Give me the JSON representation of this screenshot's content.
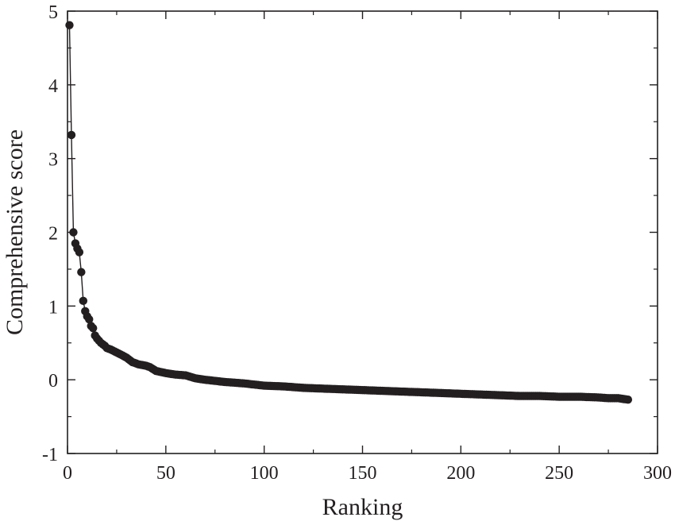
{
  "chart_data": {
    "type": "scatter",
    "title": "",
    "xlabel": "Ranking",
    "ylabel": "Comprehensive score",
    "xlim": [
      0,
      300
    ],
    "ylim": [
      -1,
      5
    ],
    "x_ticks": [
      "0",
      "50",
      "100",
      "150",
      "200",
      "250",
      "300"
    ],
    "y_ticks": [
      "-1",
      "0",
      "1",
      "2",
      "3",
      "4",
      "5"
    ],
    "grid": false,
    "legend": "none",
    "marker_color": "#231f20",
    "line_connected": true,
    "points_total": 285,
    "points": [
      [
        1,
        4.81
      ],
      [
        2,
        3.32
      ],
      [
        3,
        2.0
      ],
      [
        4,
        1.85
      ],
      [
        5,
        1.78
      ],
      [
        6,
        1.73
      ],
      [
        7,
        1.46
      ],
      [
        8,
        1.07
      ],
      [
        9,
        0.93
      ],
      [
        10,
        0.86
      ],
      [
        11,
        0.82
      ],
      [
        12,
        0.73
      ],
      [
        13,
        0.7
      ],
      [
        14,
        0.6
      ],
      [
        15,
        0.56
      ],
      [
        16,
        0.53
      ],
      [
        17,
        0.5
      ],
      [
        18,
        0.48
      ],
      [
        19,
        0.46
      ],
      [
        20,
        0.43
      ],
      [
        22,
        0.41
      ],
      [
        25,
        0.37
      ],
      [
        28,
        0.33
      ],
      [
        30,
        0.3
      ],
      [
        33,
        0.24
      ],
      [
        36,
        0.21
      ],
      [
        40,
        0.19
      ],
      [
        42,
        0.17
      ],
      [
        45,
        0.12
      ],
      [
        50,
        0.09
      ],
      [
        55,
        0.07
      ],
      [
        60,
        0.06
      ],
      [
        65,
        0.02
      ],
      [
        70,
        0.0
      ],
      [
        80,
        -0.03
      ],
      [
        90,
        -0.05
      ],
      [
        100,
        -0.08
      ],
      [
        110,
        -0.09
      ],
      [
        120,
        -0.11
      ],
      [
        130,
        -0.12
      ],
      [
        140,
        -0.13
      ],
      [
        150,
        -0.14
      ],
      [
        160,
        -0.15
      ],
      [
        170,
        -0.16
      ],
      [
        180,
        -0.17
      ],
      [
        190,
        -0.18
      ],
      [
        200,
        -0.19
      ],
      [
        210,
        -0.2
      ],
      [
        220,
        -0.21
      ],
      [
        230,
        -0.22
      ],
      [
        240,
        -0.22
      ],
      [
        250,
        -0.23
      ],
      [
        260,
        -0.23
      ],
      [
        270,
        -0.24
      ],
      [
        275,
        -0.25
      ],
      [
        280,
        -0.25
      ],
      [
        285,
        -0.27
      ]
    ]
  }
}
